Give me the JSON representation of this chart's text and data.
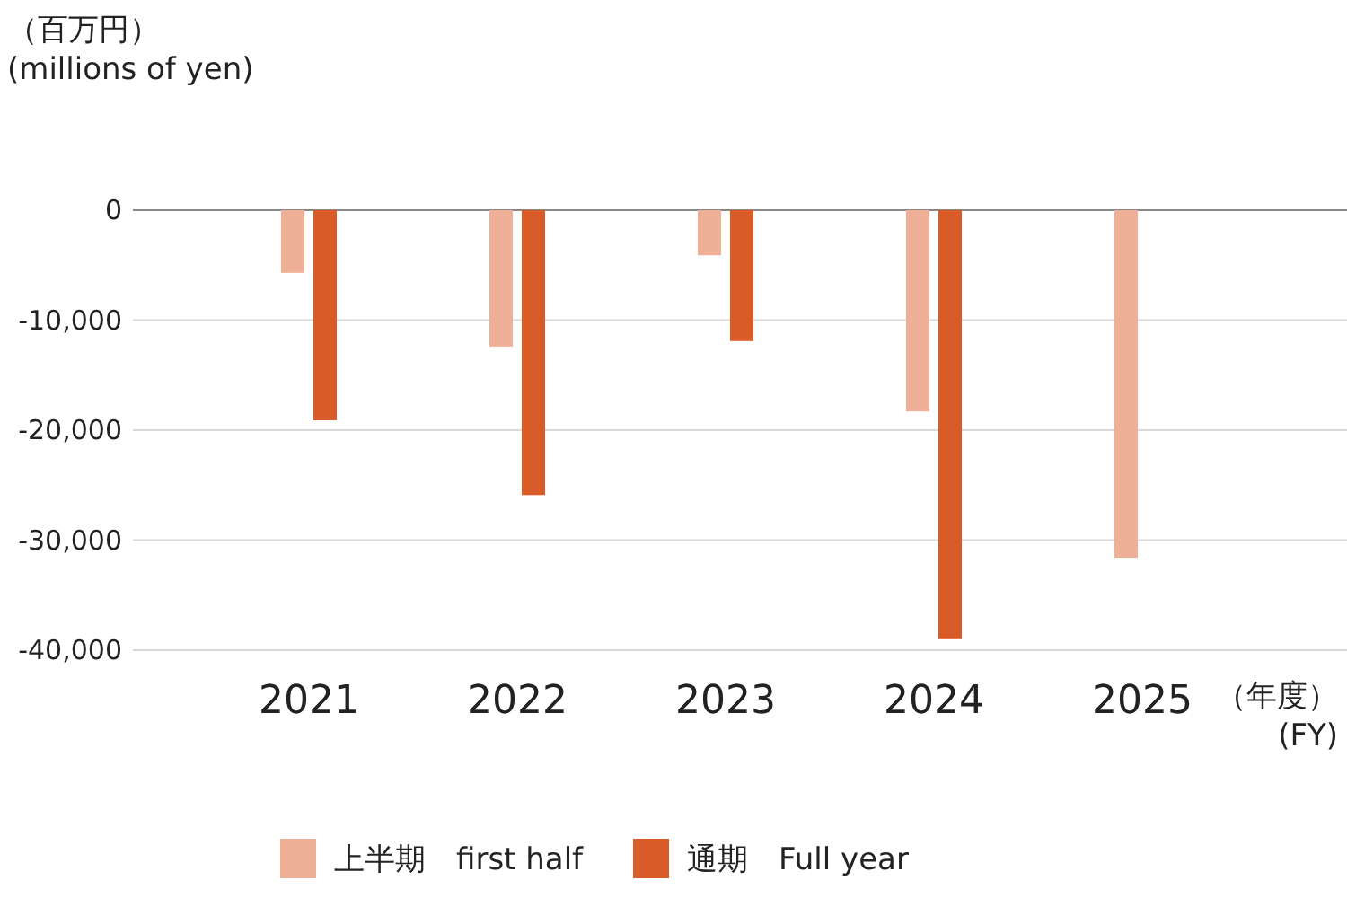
{
  "chart_data": {
    "type": "bar",
    "ylabel": "（百万円） (millions of yen)",
    "xlabel": "（年度） (FY)",
    "categories": [
      "2021",
      "2022",
      "2023",
      "2024",
      "2025"
    ],
    "series": [
      {
        "name": "上半期　first half",
        "color": "#f0b097",
        "values": [
          -5700,
          -12400,
          -4100,
          -18300,
          -31600
        ]
      },
      {
        "name": "通期　Full year",
        "color": "#d95b27",
        "values": [
          -19100,
          -25900,
          -11900,
          -39000,
          null
        ]
      }
    ],
    "ylim": [
      -40000,
      0
    ],
    "yticks": [
      {
        "value": 0,
        "label": "0"
      },
      {
        "value": -10000,
        "label": "-10,000"
      },
      {
        "value": -20000,
        "label": "-20,000"
      },
      {
        "value": -30000,
        "label": "-30,000"
      },
      {
        "value": -40000,
        "label": "-40,000"
      }
    ],
    "grid": "y",
    "legend": "bottom"
  }
}
